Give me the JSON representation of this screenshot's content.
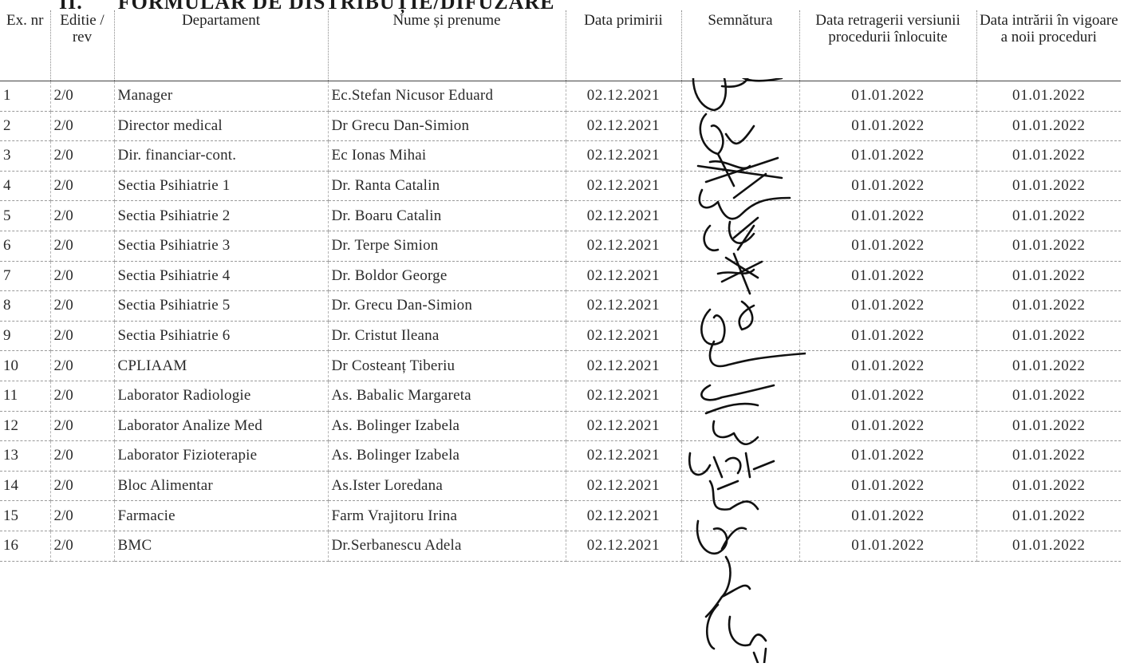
{
  "form_title": {
    "number": "II.",
    "text": "FORMULAR DE DISTRIBUȚIE/DIFUZARE"
  },
  "columns": [
    "Ex. nr",
    "Editie / rev",
    "Departament",
    "Nume și prenume",
    "Data primirii",
    "Semnătura",
    "Data retragerii versiunii procedurii înlocuite",
    "Data intrării în vigoare a noii proceduri"
  ],
  "rows": [
    {
      "ex": "1",
      "editie": "2/0",
      "departament": "Manager",
      "nume": "Ec.Stefan Nicusor Eduard",
      "data_primirii": "02.12.2021",
      "data_retragerii": "01.01.2022",
      "data_intrarii": "01.01.2022"
    },
    {
      "ex": "2",
      "editie": "2/0",
      "departament": "Director medical",
      "nume": "Dr Grecu Dan-Simion",
      "data_primirii": "02.12.2021",
      "data_retragerii": "01.01.2022",
      "data_intrarii": "01.01.2022"
    },
    {
      "ex": "3",
      "editie": "2/0",
      "departament": "Dir. financiar-cont.",
      "nume": "Ec Ionas Mihai",
      "data_primirii": "02.12.2021",
      "data_retragerii": "01.01.2022",
      "data_intrarii": "01.01.2022"
    },
    {
      "ex": "4",
      "editie": "2/0",
      "departament": "Sectia Psihiatrie 1",
      "nume": "Dr. Ranta Catalin",
      "data_primirii": "02.12.2021",
      "data_retragerii": "01.01.2022",
      "data_intrarii": "01.01.2022"
    },
    {
      "ex": "5",
      "editie": "2/0",
      "departament": "Sectia Psihiatrie 2",
      "nume": "Dr. Boaru Catalin",
      "data_primirii": "02.12.2021",
      "data_retragerii": "01.01.2022",
      "data_intrarii": "01.01.2022"
    },
    {
      "ex": "6",
      "editie": "2/0",
      "departament": "Sectia Psihiatrie 3",
      "nume": "Dr. Terpe Simion",
      "data_primirii": "02.12.2021",
      "data_retragerii": "01.01.2022",
      "data_intrarii": "01.01.2022"
    },
    {
      "ex": "7",
      "editie": "2/0",
      "departament": "Sectia Psihiatrie 4",
      "nume": "Dr. Boldor George",
      "data_primirii": "02.12.2021",
      "data_retragerii": "01.01.2022",
      "data_intrarii": "01.01.2022"
    },
    {
      "ex": "8",
      "editie": "2/0",
      "departament": "Sectia Psihiatrie 5",
      "nume": "Dr. Grecu Dan-Simion",
      "data_primirii": "02.12.2021",
      "data_retragerii": "01.01.2022",
      "data_intrarii": "01.01.2022"
    },
    {
      "ex": "9",
      "editie": "2/0",
      "departament": "Sectia Psihiatrie 6",
      "nume": "Dr. Cristut Ileana",
      "data_primirii": "02.12.2021",
      "data_retragerii": "01.01.2022",
      "data_intrarii": "01.01.2022"
    },
    {
      "ex": "10",
      "editie": "2/0",
      "departament": "CPLIAAM",
      "nume": "Dr Costeanț Tiberiu",
      "data_primirii": "02.12.2021",
      "data_retragerii": "01.01.2022",
      "data_intrarii": "01.01.2022"
    },
    {
      "ex": "11",
      "editie": "2/0",
      "departament": "Laborator Radiologie",
      "nume": "As. Babalic Margareta",
      "data_primirii": "02.12.2021",
      "data_retragerii": "01.01.2022",
      "data_intrarii": "01.01.2022"
    },
    {
      "ex": "12",
      "editie": "2/0",
      "departament": "Laborator Analize Med",
      "nume": "As. Bolinger Izabela",
      "data_primirii": "02.12.2021",
      "data_retragerii": "01.01.2022",
      "data_intrarii": "01.01.2022"
    },
    {
      "ex": "13",
      "editie": "2/0",
      "departament": "Laborator Fizioterapie",
      "nume": "As. Bolinger Izabela",
      "data_primirii": "02.12.2021",
      "data_retragerii": "01.01.2022",
      "data_intrarii": "01.01.2022"
    },
    {
      "ex": "14",
      "editie": "2/0",
      "departament": "Bloc Alimentar",
      "nume": "As.Ister Loredana",
      "data_primirii": "02.12.2021",
      "data_retragerii": "01.01.2022",
      "data_intrarii": "01.01.2022"
    },
    {
      "ex": "15",
      "editie": "2/0",
      "departament": "Farmacie",
      "nume": "Farm Vrajitoru Irina",
      "data_primirii": "02.12.2021",
      "data_retragerii": "01.01.2022",
      "data_intrarii": "01.01.2022"
    },
    {
      "ex": "16",
      "editie": "2/0",
      "departament": "BMC",
      "nume": "Dr.Serbanescu Adela",
      "data_primirii": "02.12.2021",
      "data_retragerii": "01.01.2022",
      "data_intrarii": "01.01.2022"
    }
  ]
}
